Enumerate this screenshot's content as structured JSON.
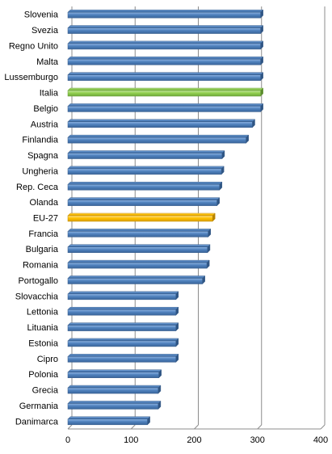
{
  "chart_data": {
    "type": "bar",
    "orientation": "horizontal",
    "categories": [
      "Slovenia",
      "Svezia",
      "Regno Unito",
      "Malta",
      "Lussemburgo",
      "Italia",
      "Belgio",
      "Austria",
      "Finlandia",
      "Spagna",
      "Ungheria",
      "Rep. Ceca",
      "Olanda",
      "EU-27",
      "Francia",
      "Bulgaria",
      "Romania",
      "Portogallo",
      "Slovacchia",
      "Lettonia",
      "Lituania",
      "Estonia",
      "Cipro",
      "Polonia",
      "Grecia",
      "Germania",
      "Danimarca"
    ],
    "values": [
      305,
      305,
      305,
      305,
      305,
      305,
      305,
      292,
      282,
      244,
      243,
      240,
      236,
      229,
      222,
      221,
      220,
      213,
      171,
      171,
      171,
      171,
      171,
      144,
      143,
      143,
      126
    ],
    "highlight": {
      "Italia": "#92d050",
      "EU-27": "#ffc000"
    },
    "bar_color": "#4f81bd",
    "title": "",
    "xlabel": "",
    "ylabel": "",
    "xlim": [
      0,
      400
    ],
    "xticks": [
      "0",
      "100",
      "200",
      "300",
      "400"
    ],
    "grid": true,
    "legend": "none"
  }
}
